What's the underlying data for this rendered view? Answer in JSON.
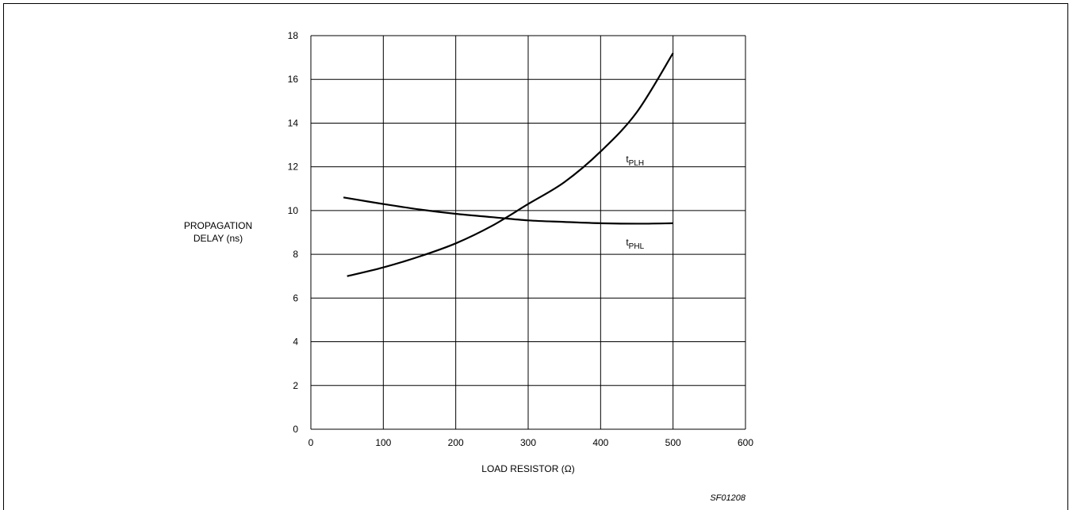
{
  "chart_data": {
    "type": "line",
    "xlabel": "LOAD RESISTOR (Ω)",
    "ylabel": [
      "PROPAGATION",
      "DELAY (ns)"
    ],
    "xlim": [
      0,
      600
    ],
    "ylim": [
      0,
      18
    ],
    "xticks": [
      0,
      100,
      200,
      300,
      400,
      500,
      600
    ],
    "yticks": [
      0,
      2,
      4,
      6,
      8,
      10,
      12,
      14,
      16,
      18
    ],
    "grid": true,
    "series": [
      {
        "name": "tPLH",
        "label_main": "t",
        "label_sub": "PLH",
        "x": [
          50,
          100,
          150,
          200,
          250,
          300,
          350,
          400,
          450,
          500
        ],
        "y": [
          7.0,
          7.4,
          7.9,
          8.5,
          9.3,
          10.3,
          11.3,
          12.7,
          14.5,
          17.2
        ]
      },
      {
        "name": "tPHL",
        "label_main": "t",
        "label_sub": "PHL",
        "x": [
          45,
          100,
          150,
          200,
          250,
          300,
          350,
          400,
          450,
          500
        ],
        "y": [
          10.6,
          10.3,
          10.05,
          9.85,
          9.7,
          9.55,
          9.48,
          9.42,
          9.4,
          9.42
        ]
      }
    ]
  },
  "figure_ref": "SF01208"
}
